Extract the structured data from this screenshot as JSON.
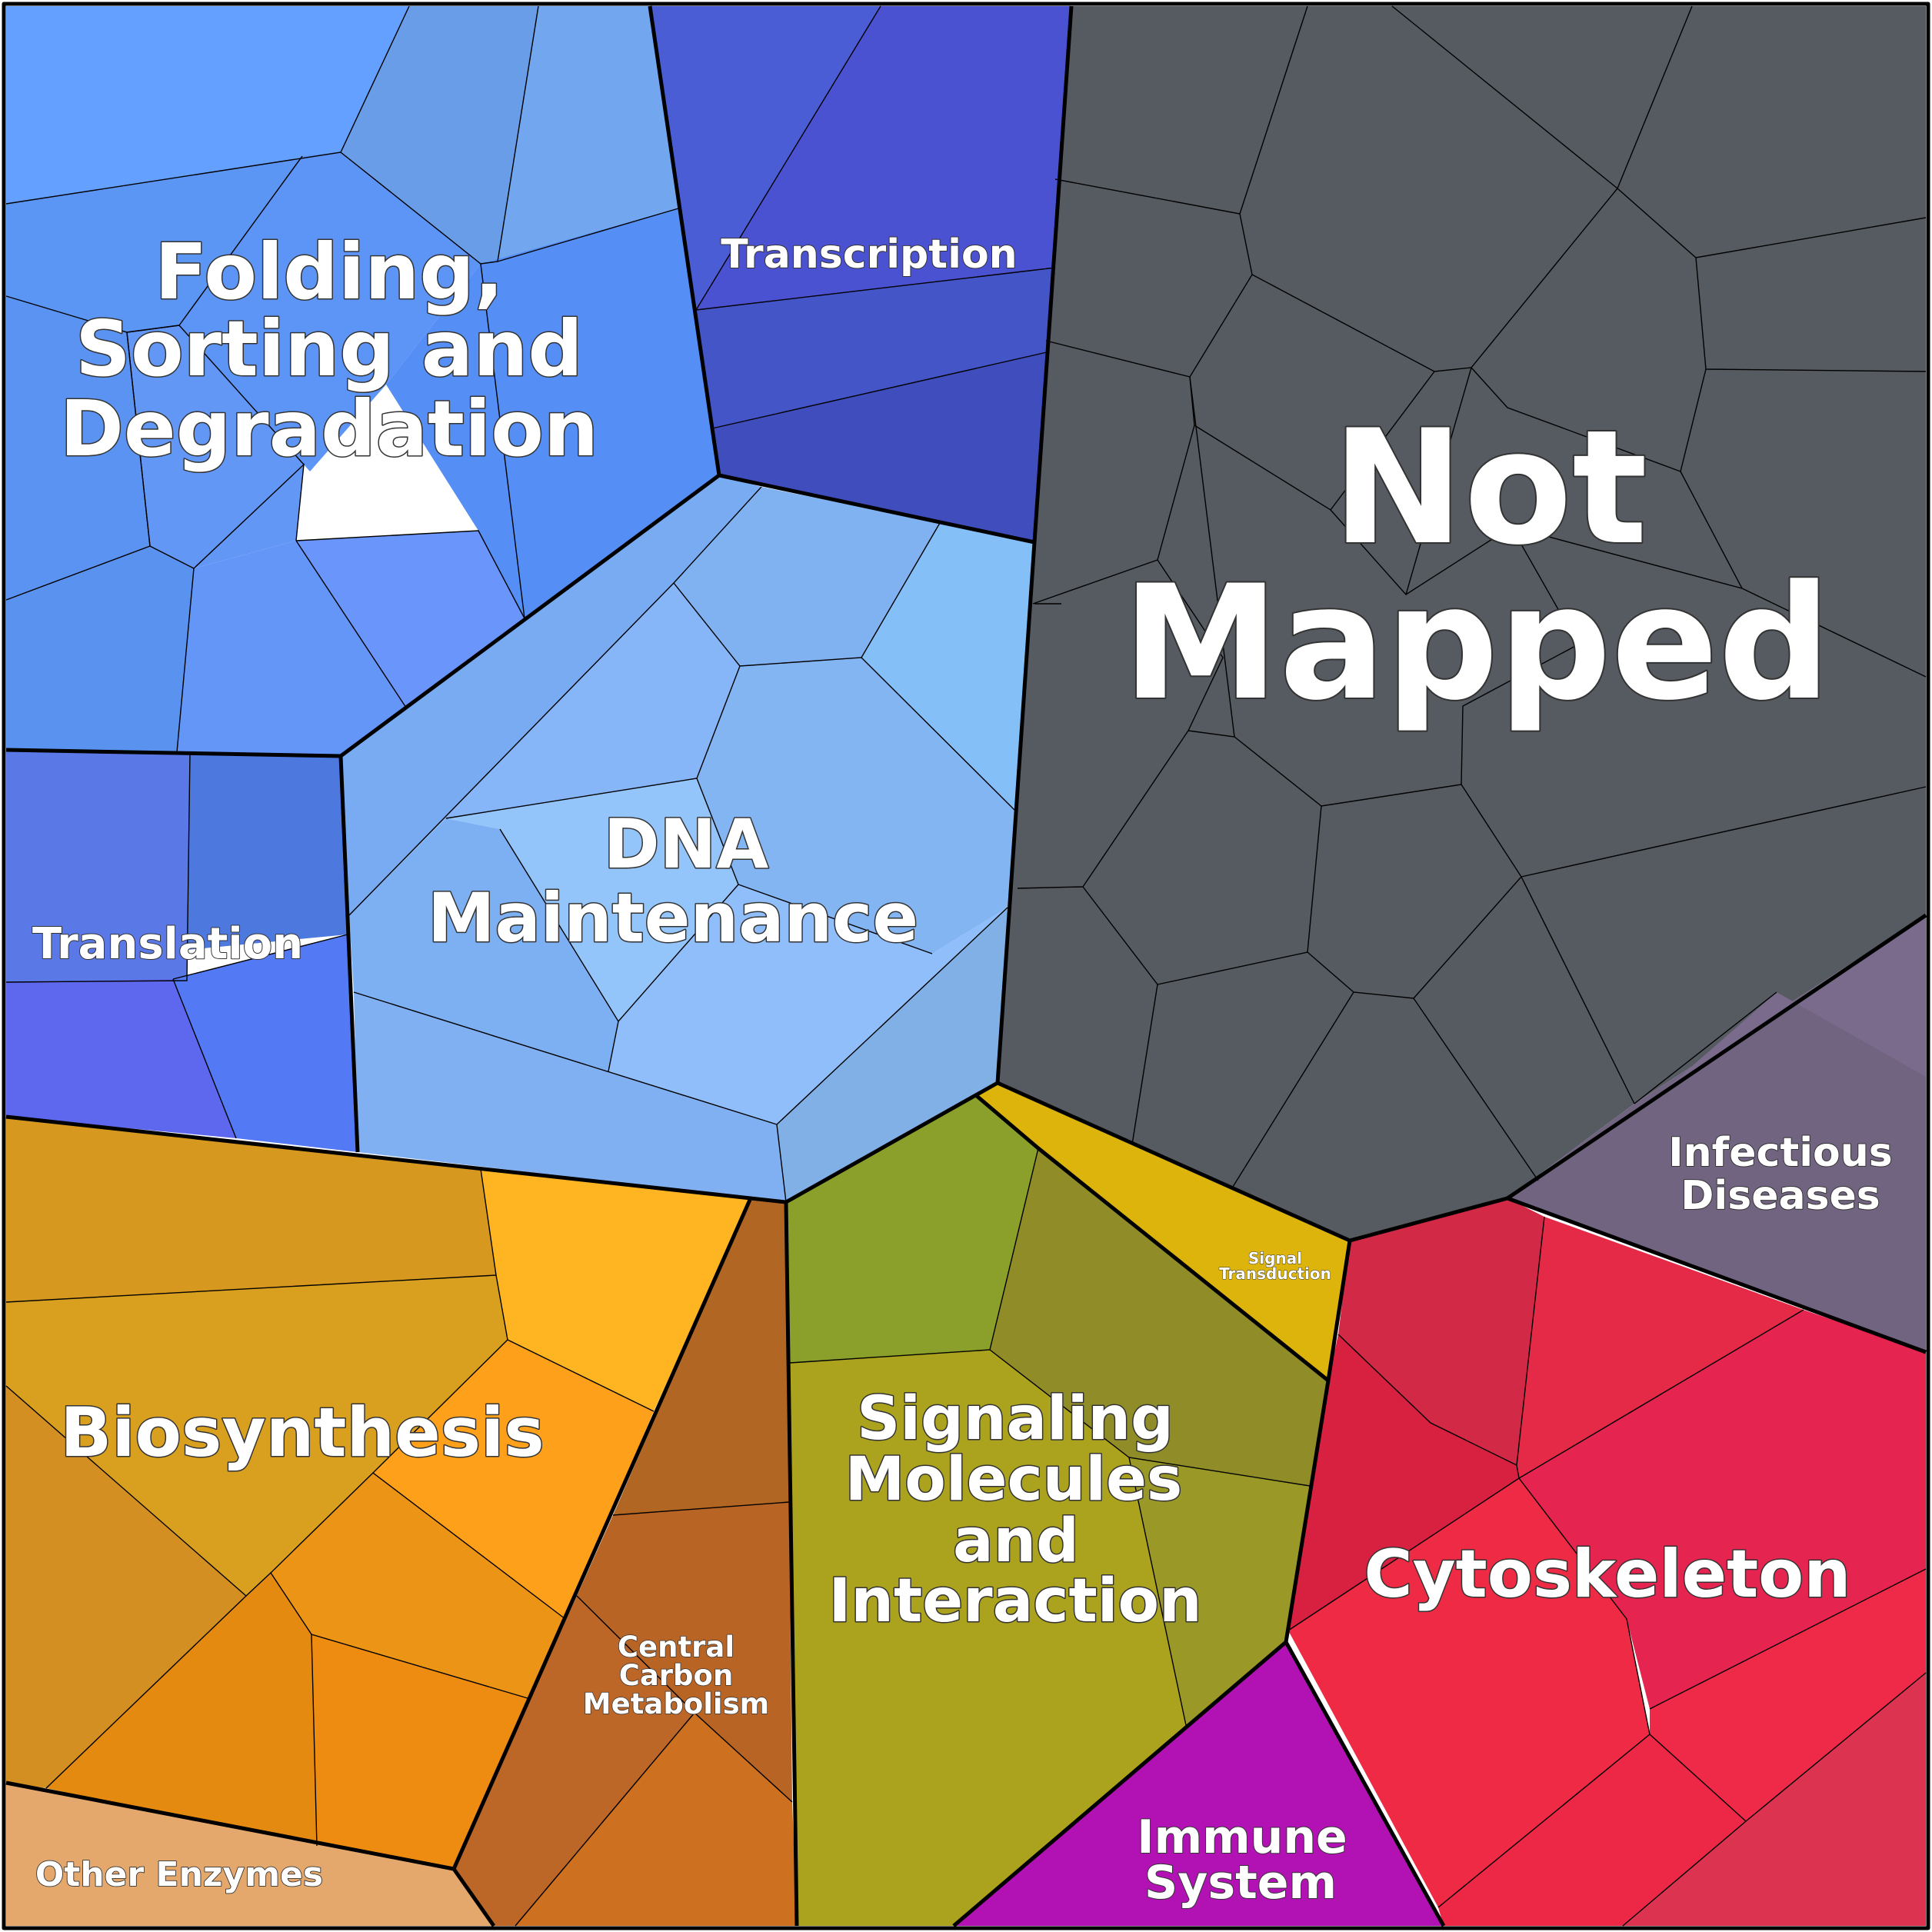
{
  "diagram": {
    "type": "voronoi-treemap",
    "categories": [
      {
        "id": "folding",
        "lines": [
          "Folding,",
          "Sorting and",
          "Degradation"
        ],
        "color": "#5b8ff0"
      },
      {
        "id": "transcription",
        "lines": [
          "Transcription"
        ],
        "color": "#4650cc"
      },
      {
        "id": "not-mapped",
        "lines": [
          "Not",
          "Mapped"
        ],
        "color": "#565b62"
      },
      {
        "id": "translation",
        "lines": [
          "Translation"
        ],
        "color": "#5673e8"
      },
      {
        "id": "dna-maintenance",
        "lines": [
          "DNA",
          "Maintenance"
        ],
        "color": "#82b4f6"
      },
      {
        "id": "infectious-diseases",
        "lines": [
          "Infectious",
          "Diseases"
        ],
        "color": "#716480"
      },
      {
        "id": "biosynthesis",
        "lines": [
          "Biosynthesis"
        ],
        "color": "#d99a24"
      },
      {
        "id": "central-carbon-metabolism",
        "lines": [
          "Central",
          "Carbon",
          "Metabolism"
        ],
        "color": "#bc6628"
      },
      {
        "id": "signal-transduction",
        "lines": [
          "Signal",
          "Transduction"
        ],
        "color": "#dcb40c"
      },
      {
        "id": "signaling-molecules",
        "lines": [
          "Signaling",
          "Molecules",
          "and",
          "Interaction"
        ],
        "color": "#a6a020"
      },
      {
        "id": "cytoskeleton",
        "lines": [
          "Cytoskeleton"
        ],
        "color": "#e62a48"
      },
      {
        "id": "immune-system",
        "lines": [
          "Immune",
          "System"
        ],
        "color": "#b212b4"
      },
      {
        "id": "other-enzymes",
        "lines": [
          "Other Enzymes"
        ],
        "color": "#e4a86c"
      }
    ]
  }
}
